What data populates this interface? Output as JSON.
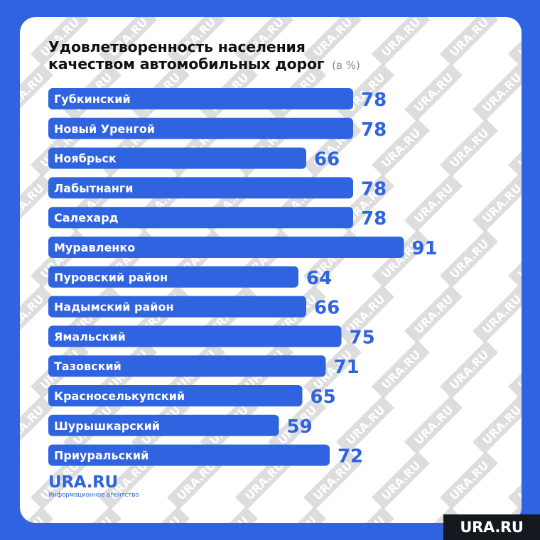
{
  "title": {
    "line1": "Удовлетворенность населения",
    "line2": "качеством автомобильных дорог",
    "unit": "(в %)"
  },
  "chart_data": {
    "type": "bar",
    "orientation": "horizontal",
    "categories": [
      "Губкинский",
      "Новый Уренгой",
      "Ноябрьск",
      "Лабытнанги",
      "Салехард",
      "Муравленко",
      "Пуровский район",
      "Надымский район",
      "Ямальский",
      "Тазовский",
      "Красноселькупский",
      "Шурышкарский",
      "Приуральский"
    ],
    "values": [
      78,
      78,
      66,
      78,
      78,
      91,
      64,
      66,
      75,
      71,
      65,
      59,
      72
    ],
    "title": "Удовлетворенность населения качеством автомобильных дорог",
    "xlabel": "",
    "ylabel": "",
    "unit": "%",
    "xlim": [
      0,
      100
    ]
  },
  "logo": {
    "name": "URA.RU",
    "subtitle": "Информационное агентство"
  },
  "watermark": {
    "text": "URA.RU"
  },
  "colors": {
    "background": "#2f63e0",
    "bar": "#2f63e0",
    "bar_label": "#ffffff",
    "value_label": "#2f63e0",
    "watermark_bg": "#d4d4d4",
    "watermark_text": "#ffffff",
    "corner_badge": "#14191f"
  }
}
